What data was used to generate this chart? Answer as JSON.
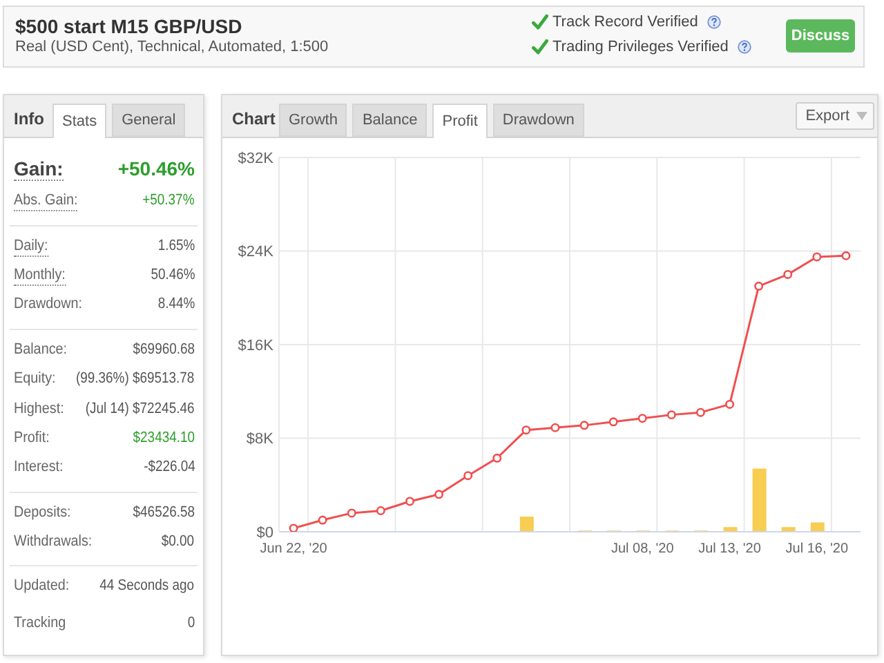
{
  "chart_data": [
    {
      "type": "other",
      "title": "$500 start M15 GBP/USD",
      "subtitle": "Real (USD Cent), Technical, Automated, 1:500",
      "annotations": [
        "Track Record Verified",
        "Trading Privileges Verified",
        "Discuss"
      ]
    },
    {
      "type": "other",
      "title": "Info",
      "annotations": [
        "Stats",
        "General",
        "Gain:",
        "+50.46%",
        "Abs. Gain:",
        "+50.37%",
        "Daily:",
        "1.65%",
        "Monthly:",
        "50.46%",
        "Drawdown:",
        "8.44%",
        "Balance:",
        "$69960.68",
        "Equity:",
        "(99.36%) $69513.78",
        "Highest:",
        "(Jul 14) $72245.46",
        "Profit:",
        "$23434.10",
        "Interest:",
        "-$226.04",
        "Deposits:",
        "$46526.58",
        "Withdrawals:",
        "$0.00",
        "Updated:",
        "44 Seconds ago",
        "Tracking",
        "0"
      ]
    },
    {
      "type": "bar",
      "title": "Chart",
      "annotations": [
        "Growth",
        "Balance",
        "Profit",
        "Drawdown",
        "Export"
      ],
      "categories": [
        "Jun 22, '20",
        null,
        null,
        null,
        null,
        null,
        null,
        null,
        null,
        null,
        null,
        null,
        "Jul 08, '20",
        null,
        null,
        "Jul 13, '20",
        null,
        null,
        "Jul 16, '20",
        null
      ],
      "series": [
        {
          "color": "#f7cd52",
          "values": [
            null,
            null,
            null,
            null,
            null,
            null,
            null,
            null,
            1300,
            null,
            100,
            100,
            100,
            100,
            100,
            400,
            5400,
            400,
            800,
            0
          ]
        },
        {
          "type": "line",
          "color": "#f04f4f",
          "values": [
            300,
            1000,
            1600,
            1800,
            2600,
            3200,
            4800,
            6300,
            8700,
            8900,
            9100,
            9400,
            9700,
            10000,
            10200,
            10900,
            21000,
            22000,
            23500,
            23600
          ]
        }
      ],
      "ylim": [
        0,
        32000
      ],
      "yticks": [
        {
          "value": 0,
          "label": "$0"
        },
        {
          "value": 8000,
          "label": "$8K"
        },
        {
          "value": 16000,
          "label": "$16K"
        },
        {
          "value": 24000,
          "label": "$24K"
        },
        {
          "value": 32000,
          "label": "$32K"
        }
      ],
      "grid": true,
      "marker": "circle"
    }
  ]
}
